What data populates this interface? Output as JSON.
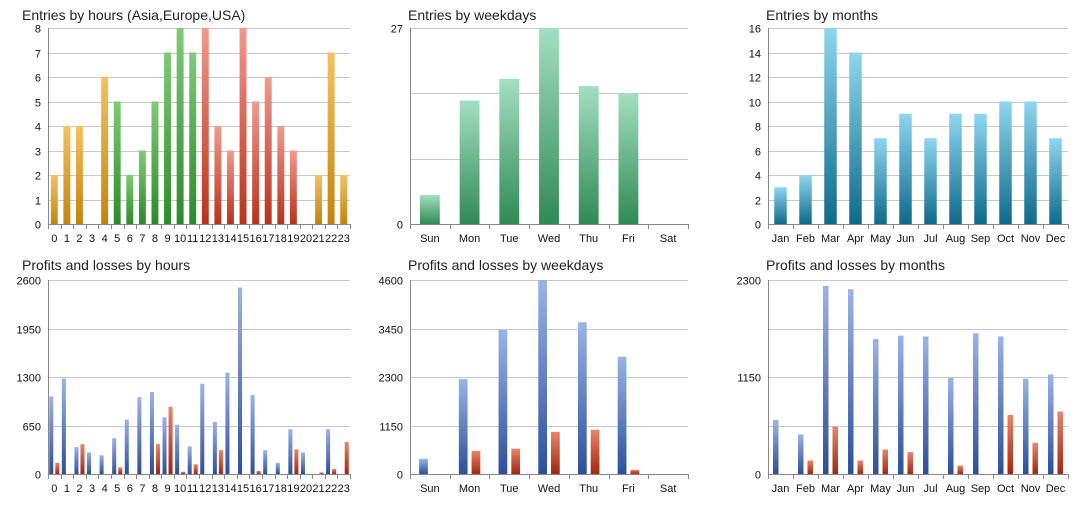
{
  "colors": {
    "hours_asia_top": "#f2c261",
    "hours_asia_bottom": "#c4840e",
    "hours_europe_top": "#7ecb74",
    "hours_europe_bottom": "#2d8a2a",
    "hours_usa_top": "#f09a8e",
    "hours_usa_bottom": "#b8321d",
    "weekday_top": "#a3dfc2",
    "weekday_bottom": "#2f8a55",
    "month_top": "#8fd6ee",
    "month_bottom": "#0e6a8c",
    "profit_top": "#9bb4e6",
    "profit_bottom": "#2d4f9a",
    "loss_top": "#e8856c",
    "loss_bottom": "#a3260f"
  },
  "chart_data": [
    {
      "id": "entries-hours",
      "type": "bar",
      "title": "Entries by hours (Asia,Europe,USA)",
      "categories": [
        "0",
        "1",
        "2",
        "3",
        "4",
        "5",
        "6",
        "7",
        "8",
        "9",
        "10",
        "11",
        "12",
        "13",
        "14",
        "15",
        "16",
        "17",
        "18",
        "19",
        "20",
        "21",
        "22",
        "23"
      ],
      "values": [
        2,
        4,
        4,
        0,
        6,
        5,
        2,
        3,
        5,
        7,
        8,
        7,
        8,
        4,
        3,
        8,
        5,
        6,
        4,
        3,
        0,
        2,
        7,
        2
      ],
      "color_groups": [
        "asia",
        "asia",
        "asia",
        "asia",
        "asia",
        "europe",
        "europe",
        "europe",
        "europe",
        "europe",
        "europe",
        "europe",
        "usa",
        "usa",
        "usa",
        "usa",
        "usa",
        "usa",
        "usa",
        "usa",
        "asia",
        "asia",
        "asia",
        "asia"
      ],
      "yticks": [
        0,
        1,
        2,
        3,
        4,
        5,
        6,
        7,
        8
      ],
      "ytick_labels": [
        "0",
        "1",
        "2",
        "3",
        "4",
        "5",
        "6",
        "7",
        "8"
      ],
      "ylim": [
        0,
        8
      ],
      "xlabel": "",
      "ylabel": "",
      "grid": true
    },
    {
      "id": "entries-weekdays",
      "type": "bar",
      "title": "Entries by weekdays",
      "categories": [
        "Sun",
        "Mon",
        "Tue",
        "Wed",
        "Thu",
        "Fri",
        "Sat"
      ],
      "values": [
        4,
        17,
        20,
        27,
        19,
        18,
        0
      ],
      "yticks": [
        0,
        9,
        18,
        27
      ],
      "ytick_labels": [
        "0",
        "",
        "",
        "27"
      ],
      "ylim": [
        0,
        27
      ],
      "xlabel": "",
      "ylabel": "",
      "grid": true
    },
    {
      "id": "entries-months",
      "type": "bar",
      "title": "Entries by months",
      "categories": [
        "Jan",
        "Feb",
        "Mar",
        "Apr",
        "May",
        "Jun",
        "Jul",
        "Aug",
        "Sep",
        "Oct",
        "Nov",
        "Dec"
      ],
      "values": [
        3,
        4,
        16,
        14,
        7,
        9,
        7,
        9,
        9,
        10,
        10,
        7
      ],
      "yticks": [
        0,
        2,
        4,
        6,
        8,
        10,
        12,
        14,
        16
      ],
      "ytick_labels": [
        "0",
        "2",
        "4",
        "6",
        "8",
        "10",
        "12",
        "14",
        "16"
      ],
      "ylim": [
        0,
        16
      ],
      "xlabel": "",
      "ylabel": "",
      "grid": true
    },
    {
      "id": "pl-hours",
      "type": "bar",
      "title": "Profits and losses by hours",
      "categories": [
        "0",
        "1",
        "2",
        "3",
        "4",
        "5",
        "6",
        "7",
        "8",
        "9",
        "10",
        "11",
        "12",
        "13",
        "14",
        "15",
        "16",
        "17",
        "18",
        "19",
        "20",
        "21",
        "22",
        "23"
      ],
      "series": [
        {
          "name": "Profits",
          "values": [
            1040,
            1280,
            360,
            290,
            250,
            480,
            730,
            1030,
            1100,
            760,
            660,
            370,
            1210,
            700,
            1360,
            2500,
            1060,
            320,
            150,
            600,
            290,
            0,
            600,
            0
          ]
        },
        {
          "name": "Losses",
          "values": [
            150,
            0,
            400,
            0,
            0,
            90,
            0,
            0,
            400,
            900,
            30,
            130,
            0,
            320,
            0,
            0,
            40,
            0,
            0,
            330,
            0,
            20,
            70,
            430
          ]
        }
      ],
      "yticks": [
        0,
        650,
        1300,
        1950,
        2600
      ],
      "ytick_labels": [
        "0",
        "650",
        "1300",
        "1950",
        "2600"
      ],
      "ylim": [
        0,
        2600
      ],
      "xlabel": "",
      "ylabel": "",
      "grid": true
    },
    {
      "id": "pl-weekdays",
      "type": "bar",
      "title": "Profits and losses by weekdays",
      "categories": [
        "Sun",
        "Mon",
        "Tue",
        "Wed",
        "Thu",
        "Fri",
        "Sat"
      ],
      "series": [
        {
          "name": "Profits",
          "values": [
            360,
            2250,
            3420,
            4600,
            3600,
            2780,
            0
          ]
        },
        {
          "name": "Losses",
          "values": [
            0,
            550,
            600,
            1000,
            1050,
            100,
            0
          ]
        }
      ],
      "yticks": [
        0,
        1150,
        2300,
        3450,
        4600
      ],
      "ytick_labels": [
        "0",
        "1150",
        "2300",
        "3450",
        "4600"
      ],
      "ylim": [
        0,
        4600
      ],
      "xlabel": "",
      "ylabel": "",
      "grid": true
    },
    {
      "id": "pl-months",
      "type": "bar",
      "title": "Profits and losses by months",
      "categories": [
        "Jan",
        "Feb",
        "Mar",
        "Apr",
        "May",
        "Jun",
        "Jul",
        "Aug",
        "Sep",
        "Oct",
        "Nov",
        "Dec"
      ],
      "series": [
        {
          "name": "Profits",
          "values": [
            640,
            470,
            2230,
            2190,
            1600,
            1640,
            1630,
            1140,
            1670,
            1630,
            1130,
            1180
          ]
        },
        {
          "name": "Losses",
          "values": [
            0,
            160,
            560,
            160,
            290,
            260,
            0,
            100,
            0,
            700,
            370,
            740
          ]
        }
      ],
      "yticks": [
        0,
        575,
        1150,
        1725,
        2300
      ],
      "ytick_labels": [
        "0",
        "",
        "1150",
        "",
        "2300"
      ],
      "ylim": [
        0,
        2300
      ],
      "xlabel": "",
      "ylabel": "",
      "grid": true
    }
  ]
}
